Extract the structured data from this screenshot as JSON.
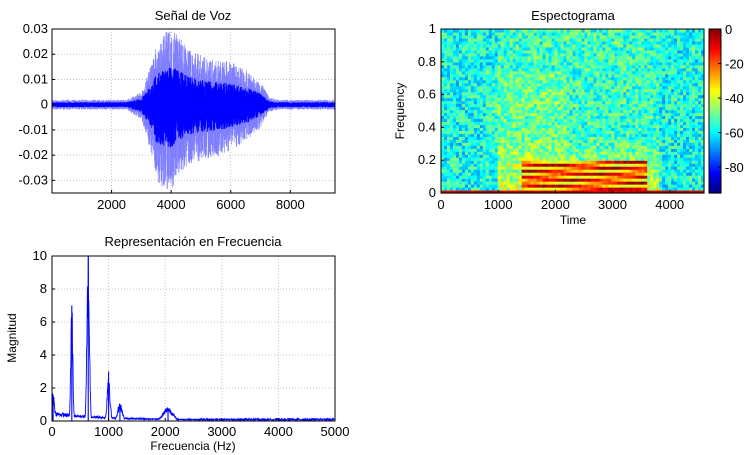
{
  "chart_data": [
    {
      "type": "line",
      "title": "Señal de Voz",
      "xlabel": "",
      "ylabel": "",
      "xlim": [
        0,
        9500
      ],
      "ylim": [
        -0.035,
        0.03
      ],
      "grid": true,
      "xticks": [
        2000,
        4000,
        6000,
        8000
      ],
      "xtick_labels": [
        "2000",
        "4000",
        "6000",
        "8000"
      ],
      "yticks": [
        0.03,
        0.02,
        0.01,
        0,
        -0.01,
        -0.02,
        -0.03
      ],
      "ytick_labels": [
        "0.03",
        "0.02",
        "0.01",
        "0",
        "-0.01",
        "-0.02",
        "-0.03"
      ],
      "envelope": {
        "x": [
          0,
          2500,
          3000,
          3300,
          3500,
          3800,
          4000,
          4300,
          4600,
          5000,
          5500,
          6000,
          6500,
          7000,
          7300,
          7600,
          9500
        ],
        "max": [
          0.002,
          0.002,
          0.005,
          0.015,
          0.024,
          0.029,
          0.03,
          0.027,
          0.022,
          0.02,
          0.018,
          0.017,
          0.014,
          0.009,
          0.003,
          0.002,
          0.002
        ],
        "min": [
          -0.002,
          -0.002,
          -0.006,
          -0.018,
          -0.03,
          -0.034,
          -0.034,
          -0.028,
          -0.024,
          -0.022,
          -0.021,
          -0.018,
          -0.015,
          -0.009,
          -0.003,
          -0.002,
          -0.002
        ]
      },
      "colors": {
        "dense": "#0000ff",
        "light": "#8080ff"
      }
    },
    {
      "type": "heatmap",
      "title": "Espectograma",
      "xlabel": "Time",
      "ylabel": "Frequency",
      "xlim": [
        0,
        4600
      ],
      "ylim": [
        0,
        1
      ],
      "xticks": [
        0,
        1000,
        2000,
        3000,
        4000
      ],
      "xtick_labels": [
        "0",
        "1000",
        "2000",
        "3000",
        "4000"
      ],
      "yticks": [
        0,
        0.2,
        0.4,
        0.6,
        0.8,
        1
      ],
      "ytick_labels": [
        "0",
        "0.2",
        "0.4",
        "0.6",
        "0.8",
        "1"
      ],
      "colorbar": {
        "range": [
          -95,
          0
        ],
        "ticks": [
          0,
          -20,
          -40,
          -60,
          -80
        ],
        "tick_labels": [
          "0",
          "-20",
          "-40",
          "-60",
          "-80"
        ],
        "colormap": "jet"
      },
      "regions": {
        "background_db": -58,
        "voiced_time_range": [
          1000,
          3800
        ],
        "harmonic_bands_time_range": [
          1400,
          3600
        ],
        "harmonic_bands_freq_range": [
          0.02,
          0.2
        ]
      }
    },
    {
      "type": "line",
      "title": "Representación en Frecuencia",
      "xlabel": "Frecuencia (Hz)",
      "ylabel": "Magnitud",
      "xlim": [
        0,
        5000
      ],
      "ylim": [
        0,
        10
      ],
      "grid": true,
      "xticks": [
        0,
        1000,
        2000,
        3000,
        4000,
        5000
      ],
      "xtick_labels": [
        "0",
        "1000",
        "2000",
        "3000",
        "4000",
        "5000"
      ],
      "yticks": [
        0,
        2,
        4,
        6,
        8,
        10
      ],
      "ytick_labels": [
        "0",
        "2",
        "4",
        "6",
        "8",
        "10"
      ],
      "peaks": [
        {
          "x": 20,
          "y": 1.6
        },
        {
          "x": 350,
          "y": 7.0
        },
        {
          "x": 640,
          "y": 10.0
        },
        {
          "x": 1000,
          "y": 3.0
        },
        {
          "x": 1200,
          "y": 1.0
        },
        {
          "x": 2050,
          "y": 0.8
        }
      ],
      "color": "#0000ff"
    }
  ]
}
